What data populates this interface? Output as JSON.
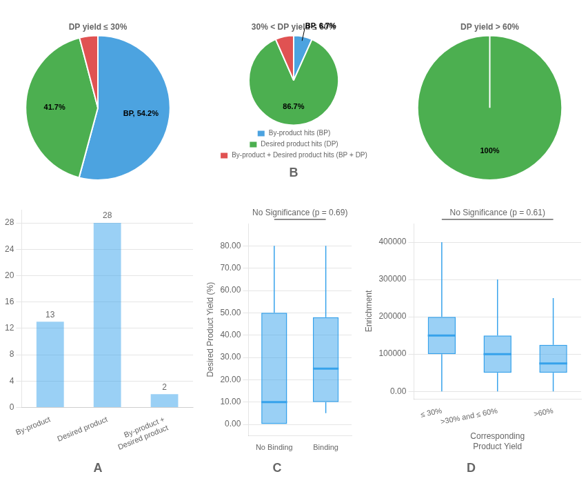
{
  "chart_data": [
    {
      "type": "bar",
      "title": "A",
      "categories": [
        "By-product",
        "Desired product",
        "By-product +\nDesired product"
      ],
      "values": [
        13,
        28,
        2
      ],
      "ylim": [
        0,
        30
      ],
      "yticks": [
        0,
        4,
        8,
        12,
        16,
        20,
        24,
        28
      ],
      "grid": true,
      "data_labels": true
    },
    {
      "type": "pie",
      "title": "DP yield ≤ 30%",
      "categories": [
        "By-product hits (BP)",
        "Desired product hits (DP)",
        "By-product + Desired product hits (BP + DP)"
      ],
      "values": [
        54.2,
        41.7,
        4.1
      ],
      "colors": [
        "#4ca3e0",
        "#4caf50",
        "#e05252"
      ],
      "data_labels": true,
      "value_labels": [
        "BP, 54.2%",
        "41.7%",
        null
      ]
    },
    {
      "type": "pie",
      "title": "30% < DP yield ≤ 60%",
      "subtitle": "B",
      "categories": [
        "By-product hits (BP)",
        "Desired product hits (DP)",
        "By-product + Desired product hits (BP + DP)"
      ],
      "values": [
        6.7,
        86.7,
        6.6
      ],
      "colors": [
        "#4ca3e0",
        "#4caf50",
        "#e05252"
      ],
      "data_labels": true,
      "value_labels": [
        "BP, 6.7%",
        "86.7%",
        null
      ],
      "legend": "bottom"
    },
    {
      "type": "pie",
      "title": "DP yield > 60%",
      "categories": [
        "Desired product hits (DP)"
      ],
      "values": [
        100
      ],
      "colors": [
        "#4caf50"
      ],
      "data_labels": true,
      "value_labels": [
        "100%"
      ]
    },
    {
      "type": "box",
      "title": "C",
      "categories": [
        "No Binding",
        "Binding"
      ],
      "boxes": [
        {
          "whislo": 0,
          "q1": 0,
          "med": 10,
          "q3": 50,
          "whishi": 80
        },
        {
          "whislo": 5,
          "q1": 10,
          "med": 25,
          "q3": 48,
          "whishi": 80
        }
      ],
      "ylabel": "Desired Product Yield (%)",
      "ylim": [
        -5,
        90
      ],
      "yticks": [
        {
          "value": 0,
          "label": "0.00"
        },
        {
          "value": 10,
          "label": "10.00"
        },
        {
          "value": 20,
          "label": "20.00"
        },
        {
          "value": 30,
          "label": "30.00"
        },
        {
          "value": 40,
          "label": "40.00"
        },
        {
          "value": 50,
          "label": "50.00"
        },
        {
          "value": 60,
          "label": "60.00"
        },
        {
          "value": 70,
          "label": "70.00"
        },
        {
          "value": 80,
          "label": "80.00"
        }
      ],
      "grid": true,
      "annotations": [
        "No Significance (p = 0.69)"
      ]
    },
    {
      "type": "box",
      "title": "D",
      "categories": [
        "≤ 30%",
        ">30% and ≤ 60%",
        ">60%"
      ],
      "boxes": [
        {
          "whislo": 0,
          "q1": 100000,
          "med": 150000,
          "q3": 200000,
          "whishi": 400000
        },
        {
          "whislo": 0,
          "q1": 50000,
          "med": 100000,
          "q3": 150000,
          "whishi": 300000
        },
        {
          "whislo": 0,
          "q1": 50000,
          "med": 75000,
          "q3": 125000,
          "whishi": 250000
        }
      ],
      "ylabel": "Enrichment",
      "xlabel": "Corresponding\nProduct Yield",
      "ylim": [
        -20000,
        450000
      ],
      "yticks": [
        {
          "value": 0,
          "label": "0.00"
        },
        100000,
        200000,
        300000,
        400000
      ],
      "grid": true,
      "annotations": [
        "No Significance (p = 0.61)"
      ]
    }
  ]
}
